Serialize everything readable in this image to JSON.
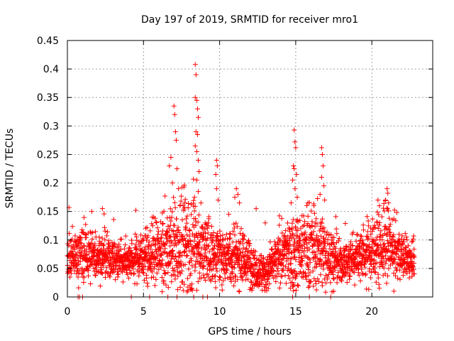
{
  "chart_data": {
    "type": "scatter",
    "title": "Day 197 of 2019, SRMTID for receiver mro1",
    "xlabel": "GPS time / hours",
    "ylabel": "SRMTID / TECUs",
    "xlim": [
      0,
      24
    ],
    "ylim": [
      0,
      0.45
    ],
    "xticks": [
      0,
      5,
      10,
      15,
      20
    ],
    "xtick_labels": [
      "0",
      "5",
      "10",
      "15",
      "20"
    ],
    "yticks": [
      0,
      0.05,
      0.1,
      0.15,
      0.2,
      0.25,
      0.3,
      0.35,
      0.4,
      0.45
    ],
    "ytick_labels": [
      "0",
      "0.05",
      "0.1",
      "0.15",
      "0.2",
      "0.25",
      "0.3",
      "0.35",
      "0.4",
      "0.45"
    ],
    "grid": true,
    "marker": "+",
    "color": "#ff0000",
    "baseline": [
      [
        0,
        0.07
      ],
      [
        1,
        0.074
      ],
      [
        2,
        0.072
      ],
      [
        3,
        0.066
      ],
      [
        4,
        0.064
      ],
      [
        5,
        0.072
      ],
      [
        6,
        0.076
      ],
      [
        7,
        0.09
      ],
      [
        8,
        0.1
      ],
      [
        9,
        0.08
      ],
      [
        10,
        0.074
      ],
      [
        11,
        0.078
      ],
      [
        12,
        0.06
      ],
      [
        13,
        0.04
      ],
      [
        14,
        0.072
      ],
      [
        15,
        0.08
      ],
      [
        16,
        0.09
      ],
      [
        17,
        0.076
      ],
      [
        18,
        0.056
      ],
      [
        19,
        0.072
      ],
      [
        20,
        0.082
      ],
      [
        21,
        0.09
      ],
      [
        22,
        0.07
      ],
      [
        22.8,
        0.068
      ]
    ],
    "spread": [
      [
        0,
        0.018
      ],
      [
        1,
        0.024
      ],
      [
        2,
        0.02
      ],
      [
        3,
        0.018
      ],
      [
        4,
        0.016
      ],
      [
        5,
        0.022
      ],
      [
        6,
        0.026
      ],
      [
        7,
        0.04
      ],
      [
        8,
        0.05
      ],
      [
        9,
        0.03
      ],
      [
        10,
        0.024
      ],
      [
        11,
        0.03
      ],
      [
        12,
        0.02
      ],
      [
        13,
        0.014
      ],
      [
        14,
        0.022
      ],
      [
        15,
        0.034
      ],
      [
        16,
        0.034
      ],
      [
        17,
        0.03
      ],
      [
        18,
        0.016
      ],
      [
        19,
        0.022
      ],
      [
        20,
        0.03
      ],
      [
        21,
        0.03
      ],
      [
        22,
        0.02
      ],
      [
        22.8,
        0.018
      ]
    ],
    "point_count": 2600,
    "x_end": 22.8,
    "notable_points": [
      {
        "x": 6.7,
        "y": 0.23
      },
      {
        "x": 6.8,
        "y": 0.245
      },
      {
        "x": 6.9,
        "y": 0.2
      },
      {
        "x": 7.0,
        "y": 0.335
      },
      {
        "x": 7.05,
        "y": 0.32
      },
      {
        "x": 7.1,
        "y": 0.29
      },
      {
        "x": 7.15,
        "y": 0.275
      },
      {
        "x": 7.2,
        "y": 0.225
      },
      {
        "x": 7.3,
        "y": 0.19
      },
      {
        "x": 7.4,
        "y": 0.16
      },
      {
        "x": 8.4,
        "y": 0.408
      },
      {
        "x": 8.45,
        "y": 0.39
      },
      {
        "x": 8.4,
        "y": 0.35
      },
      {
        "x": 8.5,
        "y": 0.345
      },
      {
        "x": 8.55,
        "y": 0.33
      },
      {
        "x": 8.6,
        "y": 0.315
      },
      {
        "x": 8.45,
        "y": 0.29
      },
      {
        "x": 8.55,
        "y": 0.285
      },
      {
        "x": 8.4,
        "y": 0.265
      },
      {
        "x": 8.5,
        "y": 0.255
      },
      {
        "x": 8.6,
        "y": 0.24
      },
      {
        "x": 8.65,
        "y": 0.22
      },
      {
        "x": 8.5,
        "y": 0.205
      },
      {
        "x": 8.6,
        "y": 0.185
      },
      {
        "x": 8.35,
        "y": 0.175
      },
      {
        "x": 9.8,
        "y": 0.24
      },
      {
        "x": 9.85,
        "y": 0.23
      },
      {
        "x": 9.75,
        "y": 0.215
      },
      {
        "x": 9.8,
        "y": 0.19
      },
      {
        "x": 9.9,
        "y": 0.17
      },
      {
        "x": 11.1,
        "y": 0.19
      },
      {
        "x": 11.2,
        "y": 0.18
      },
      {
        "x": 11.0,
        "y": 0.175
      },
      {
        "x": 11.3,
        "y": 0.165
      },
      {
        "x": 14.9,
        "y": 0.293
      },
      {
        "x": 14.95,
        "y": 0.272
      },
      {
        "x": 15.0,
        "y": 0.262
      },
      {
        "x": 14.85,
        "y": 0.23
      },
      {
        "x": 14.9,
        "y": 0.225
      },
      {
        "x": 15.05,
        "y": 0.215
      },
      {
        "x": 14.8,
        "y": 0.205
      },
      {
        "x": 14.95,
        "y": 0.19
      },
      {
        "x": 15.1,
        "y": 0.175
      },
      {
        "x": 14.7,
        "y": 0.165
      },
      {
        "x": 16.7,
        "y": 0.262
      },
      {
        "x": 16.75,
        "y": 0.25
      },
      {
        "x": 16.8,
        "y": 0.23
      },
      {
        "x": 16.7,
        "y": 0.21
      },
      {
        "x": 16.85,
        "y": 0.195
      },
      {
        "x": 16.6,
        "y": 0.18
      },
      {
        "x": 16.9,
        "y": 0.17
      },
      {
        "x": 21.0,
        "y": 0.19
      },
      {
        "x": 21.05,
        "y": 0.182
      },
      {
        "x": 20.9,
        "y": 0.17
      },
      {
        "x": 21.1,
        "y": 0.165
      },
      {
        "x": 20.4,
        "y": 0.17
      },
      {
        "x": 20.5,
        "y": 0.16
      },
      {
        "x": 1.6,
        "y": 0.15
      },
      {
        "x": 2.3,
        "y": 0.155
      },
      {
        "x": 4.5,
        "y": 0.152
      },
      {
        "x": 10.6,
        "y": 0.145
      },
      {
        "x": 12.4,
        "y": 0.155
      },
      {
        "x": 13.0,
        "y": 0.13
      },
      {
        "x": 15.8,
        "y": 0.165
      },
      {
        "x": 16.2,
        "y": 0.16
      },
      {
        "x": 17.5,
        "y": 0.01
      },
      {
        "x": 12.8,
        "y": 0.012
      },
      {
        "x": 13.2,
        "y": 0.015
      }
    ],
    "zero_points": [
      0.7,
      0.8,
      1.0,
      4.2,
      5.4,
      6.6,
      7.2,
      8.3,
      8.9,
      9.2,
      14.8,
      15.9,
      17.3
    ]
  }
}
